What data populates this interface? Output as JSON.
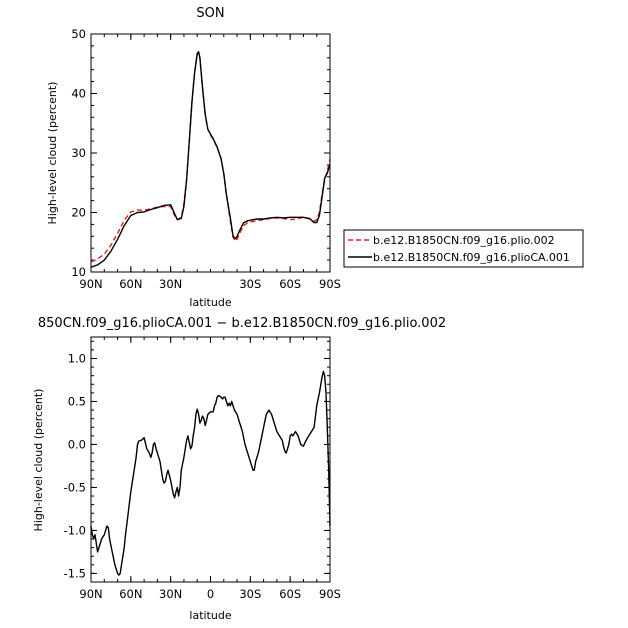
{
  "chart_data": [
    {
      "type": "line",
      "title": "SON",
      "xlabel": "latitude",
      "ylabel": "High-level cloud (percent)",
      "ylim": [
        10,
        50
      ],
      "yticks": [
        10,
        20,
        30,
        40,
        50
      ],
      "xlim": [
        90,
        -90
      ],
      "xticks": [
        90,
        60,
        30,
        -30,
        -60,
        -90
      ],
      "xticklabels": [
        "90N",
        "60N",
        "30N",
        "30S",
        "60S",
        "90S"
      ],
      "legend_position": "right",
      "series": [
        {
          "name": "b.e12.B1850CN.f09_g16.plio.002",
          "color": "#e02020",
          "dash": "dashed",
          "x": [
            90,
            85,
            80,
            75,
            70,
            65,
            60,
            55,
            50,
            45,
            40,
            35,
            30,
            27,
            25,
            22,
            20,
            18,
            16,
            14,
            12,
            10,
            9,
            8,
            6,
            4,
            2,
            0,
            -2,
            -5,
            -8,
            -10,
            -12,
            -15,
            -17,
            -19,
            -20,
            -22,
            -25,
            -28,
            -30,
            -35,
            -40,
            -45,
            -50,
            -55,
            -60,
            -65,
            -70,
            -75,
            -78,
            -80,
            -82,
            -84,
            -86,
            -88,
            -90
          ],
          "y": [
            11.7,
            12.2,
            13.0,
            14.5,
            16.5,
            18.7,
            20.1,
            20.4,
            20.4,
            20.6,
            20.9,
            21.0,
            21.0,
            19.5,
            18.8,
            19.2,
            21.5,
            25.5,
            32.0,
            38.5,
            43.5,
            46.5,
            47.0,
            46.0,
            41.0,
            36.5,
            34.0,
            33.0,
            32.3,
            31.0,
            29.0,
            26.5,
            23.0,
            18.5,
            15.8,
            15.2,
            15.5,
            16.5,
            17.8,
            18.3,
            18.4,
            18.6,
            18.8,
            19.0,
            19.1,
            19.0,
            18.8,
            18.9,
            19.2,
            19.0,
            18.5,
            18.8,
            20.0,
            23.0,
            25.5,
            27.0,
            29.0
          ]
        },
        {
          "name": "b.e12.B1850CN.f09_g16.plioCA.001",
          "color": "#000000",
          "dash": "solid",
          "x": [
            90,
            85,
            80,
            75,
            70,
            65,
            60,
            55,
            50,
            45,
            40,
            35,
            30,
            27,
            25,
            22,
            20,
            18,
            16,
            14,
            12,
            10,
            9,
            8,
            6,
            4,
            2,
            0,
            -2,
            -5,
            -8,
            -10,
            -12,
            -15,
            -17,
            -19,
            -20,
            -22,
            -25,
            -28,
            -30,
            -35,
            -40,
            -45,
            -50,
            -55,
            -60,
            -65,
            -70,
            -75,
            -78,
            -80,
            -82,
            -84,
            -86,
            -88,
            -90
          ],
          "y": [
            10.8,
            11.2,
            12.0,
            13.5,
            15.5,
            17.8,
            19.5,
            20.0,
            20.1,
            20.5,
            20.8,
            21.2,
            21.3,
            19.8,
            18.8,
            19.0,
            21.0,
            25.5,
            32.0,
            38.5,
            43.5,
            46.7,
            47.0,
            46.0,
            41.0,
            36.5,
            34.0,
            33.2,
            32.4,
            31.0,
            29.0,
            26.5,
            23.0,
            19.0,
            16.0,
            15.6,
            16.0,
            17.0,
            18.3,
            18.6,
            18.7,
            18.9,
            18.9,
            19.1,
            19.2,
            19.1,
            19.2,
            19.2,
            19.2,
            18.9,
            18.3,
            18.3,
            19.5,
            22.5,
            25.8,
            26.6,
            28.2
          ]
        }
      ]
    },
    {
      "type": "line",
      "title": "850CN.f09_g16.plioCA.001 − b.e12.B1850CN.f09_g16.plio.002",
      "xlabel": "latitude",
      "ylabel": "High-level cloud (percent)",
      "ylim": [
        -1.6,
        1.25
      ],
      "yticks": [
        -1.5,
        -1.0,
        -0.5,
        0.0,
        0.5,
        1.0
      ],
      "yticklabels": [
        "-1.5",
        "-1.0",
        "-0.5",
        "0.0",
        "0.5",
        "1.0"
      ],
      "xlim": [
        90,
        -90
      ],
      "xticks": [
        90,
        60,
        30,
        0,
        -30,
        -60,
        -90
      ],
      "xticklabels": [
        "90N",
        "60N",
        "30N",
        "0",
        "30S",
        "60S",
        "90S"
      ],
      "series": [
        {
          "color": "#000000",
          "dash": "solid",
          "x": [
            90,
            89,
            88,
            87,
            85,
            84,
            82,
            80,
            78,
            77,
            76,
            74,
            72,
            70,
            69,
            68,
            67,
            66,
            65,
            64,
            62,
            60,
            58,
            56,
            55,
            54,
            52,
            50,
            48,
            46,
            45,
            44,
            43,
            42,
            41,
            40,
            38,
            36,
            35,
            34,
            33,
            32,
            30,
            28,
            27,
            26,
            25,
            24,
            23,
            22,
            20,
            18,
            17,
            16,
            15,
            14,
            13,
            12,
            11,
            10,
            9,
            8,
            7,
            6,
            5,
            4,
            3,
            2,
            0,
            -2,
            -3,
            -4,
            -5,
            -6,
            -8,
            -9,
            -10,
            -11,
            -12,
            -13,
            -14,
            -15,
            -16,
            -18,
            -20,
            -22,
            -24,
            -26,
            -28,
            -30,
            -31,
            -32,
            -33,
            -34,
            -36,
            -38,
            -40,
            -42,
            -44,
            -46,
            -48,
            -50,
            -52,
            -54,
            -55,
            -56,
            -57,
            -58,
            -59,
            -60,
            -61,
            -62,
            -64,
            -66,
            -68,
            -70,
            -72,
            -74,
            -76,
            -78,
            -80,
            -82,
            -84,
            -85,
            -86,
            -87,
            -88,
            -89,
            -90
          ],
          "y": [
            -0.95,
            -1.05,
            -1.1,
            -1.05,
            -1.25,
            -1.2,
            -1.1,
            -1.05,
            -0.95,
            -0.97,
            -1.1,
            -1.25,
            -1.4,
            -1.5,
            -1.52,
            -1.5,
            -1.4,
            -1.3,
            -1.2,
            -1.05,
            -0.8,
            -0.55,
            -0.35,
            -0.15,
            0.0,
            0.04,
            0.05,
            0.08,
            -0.05,
            -0.1,
            -0.15,
            -0.1,
            0.0,
            0.02,
            -0.05,
            -0.1,
            -0.2,
            -0.4,
            -0.45,
            -0.43,
            -0.35,
            -0.3,
            -0.42,
            -0.58,
            -0.62,
            -0.55,
            -0.5,
            -0.6,
            -0.5,
            -0.3,
            -0.15,
            0.05,
            0.1,
            0.02,
            -0.05,
            -0.02,
            0.1,
            0.2,
            0.35,
            0.41,
            0.35,
            0.25,
            0.28,
            0.33,
            0.3,
            0.22,
            0.28,
            0.35,
            0.38,
            0.38,
            0.45,
            0.48,
            0.55,
            0.57,
            0.55,
            0.53,
            0.55,
            0.55,
            0.5,
            0.45,
            0.48,
            0.45,
            0.5,
            0.4,
            0.35,
            0.25,
            0.15,
            0.0,
            -0.1,
            -0.2,
            -0.25,
            -0.3,
            -0.3,
            -0.2,
            -0.1,
            0.05,
            0.2,
            0.35,
            0.4,
            0.35,
            0.25,
            0.15,
            0.1,
            0.05,
            -0.02,
            -0.08,
            -0.1,
            -0.05,
            0.0,
            0.1,
            0.12,
            0.1,
            0.15,
            0.1,
            0.0,
            -0.02,
            0.05,
            0.1,
            0.15,
            0.2,
            0.45,
            0.6,
            0.78,
            0.85,
            0.8,
            0.6,
            0.2,
            -0.3,
            -0.95
          ]
        }
      ]
    }
  ]
}
